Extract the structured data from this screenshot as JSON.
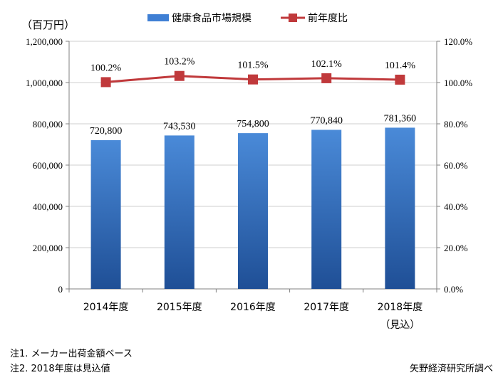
{
  "chart_data": {
    "type": "bar",
    "y_unit_label": "（百万円）",
    "categories": [
      "2014年度",
      "2015年度",
      "2016年度",
      "2017年度",
      "2018年度"
    ],
    "category_sublabels": [
      "",
      "",
      "",
      "",
      "（見込）"
    ],
    "series": [
      {
        "name": "健康食品市場規模",
        "type": "bar",
        "axis": "left",
        "color": "#3f7fd4",
        "values": [
          720800,
          743530,
          754800,
          770840,
          781360
        ],
        "labels": [
          "720,800",
          "743,530",
          "754,800",
          "770,840",
          "781,360"
        ]
      },
      {
        "name": "前年度比",
        "type": "line",
        "axis": "right",
        "color": "#c0393b",
        "values": [
          100.2,
          103.2,
          101.5,
          102.1,
          101.4
        ],
        "labels": [
          "100.2%",
          "103.2%",
          "101.5%",
          "102.1%",
          "101.4%"
        ]
      }
    ],
    "y_left": {
      "ylim": [
        0,
        1200000
      ],
      "ticks": [
        "0",
        "200,000",
        "400,000",
        "600,000",
        "800,000",
        "1,000,000",
        "1,200,000"
      ]
    },
    "y_right": {
      "ylim": [
        0,
        120
      ],
      "ticks": [
        "0.0%",
        "20.0%",
        "40.0%",
        "60.0%",
        "80.0%",
        "100.0%",
        "120.0%"
      ]
    },
    "grid": true,
    "legend_position": "top"
  },
  "notes": [
    "注1. メーカー出荷金額ベース",
    "注2. 2018年度は見込値"
  ],
  "source": "矢野経済研究所調べ"
}
